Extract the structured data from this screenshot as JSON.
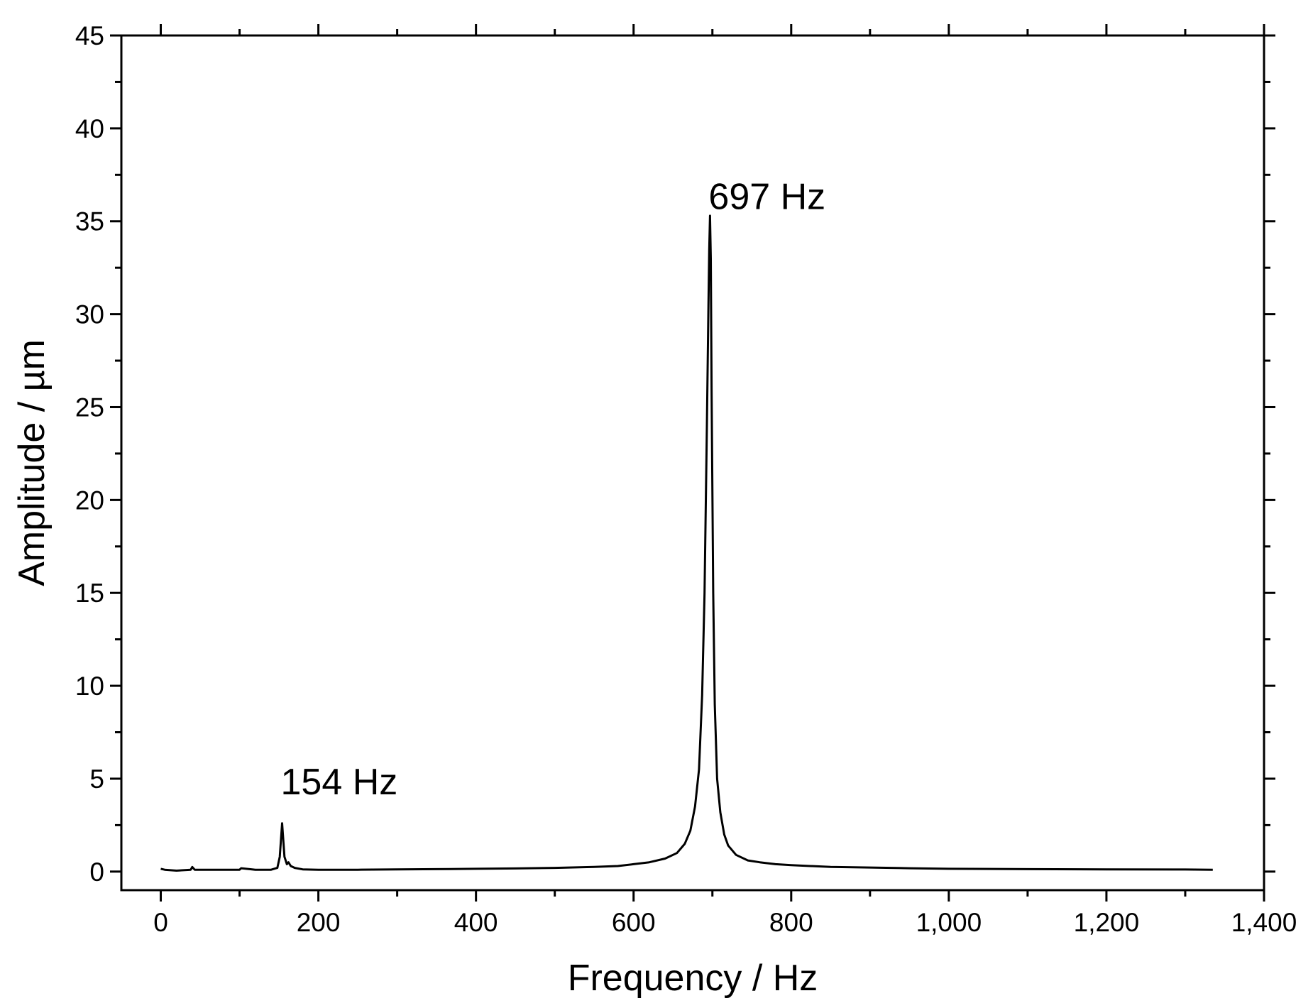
{
  "chart_data": {
    "type": "line",
    "title": "",
    "xlabel": "Frequency / Hz",
    "ylabel": "Amplitude / µm",
    "xlim": [
      -50,
      1400
    ],
    "ylim": [
      -1,
      45
    ],
    "x_ticks": [
      0,
      200,
      400,
      600,
      800,
      1000,
      1200,
      1400
    ],
    "x_tick_labels": [
      "0",
      "200",
      "400",
      "600",
      "800",
      "1,000",
      "1,200",
      "1,400"
    ],
    "y_ticks": [
      0,
      5,
      10,
      15,
      20,
      25,
      30,
      35,
      40,
      45
    ],
    "y_tick_labels": [
      "0",
      "5",
      "10",
      "15",
      "20",
      "25",
      "30",
      "35",
      "40",
      "45"
    ],
    "grid": false,
    "legend": "none",
    "series": [
      {
        "color": "#000000",
        "x": [
          0,
          5,
          20,
          38,
          40,
          43,
          60,
          100,
          102,
          120,
          140,
          148,
          151,
          153,
          154,
          155,
          157,
          160,
          162,
          165,
          170,
          180,
          200,
          250,
          300,
          350,
          400,
          450,
          500,
          550,
          580,
          600,
          620,
          640,
          655,
          665,
          672,
          678,
          683,
          687,
          690,
          693,
          695,
          696,
          697,
          698,
          699,
          701,
          703,
          706,
          710,
          715,
          720,
          730,
          745,
          760,
          780,
          800,
          850,
          900,
          950,
          1000,
          1100,
          1200,
          1300,
          1335
        ],
        "y": [
          0.15,
          0.1,
          0.05,
          0.1,
          0.25,
          0.1,
          0.1,
          0.1,
          0.18,
          0.1,
          0.1,
          0.2,
          0.8,
          2.0,
          2.6,
          2.0,
          0.8,
          0.4,
          0.5,
          0.3,
          0.2,
          0.12,
          0.1,
          0.1,
          0.12,
          0.13,
          0.15,
          0.17,
          0.2,
          0.25,
          0.3,
          0.4,
          0.5,
          0.7,
          1.0,
          1.5,
          2.2,
          3.5,
          5.5,
          9.5,
          15.0,
          24.0,
          30.5,
          33.5,
          35.3,
          33.0,
          26.0,
          15.0,
          9.0,
          5.0,
          3.2,
          2.0,
          1.4,
          0.9,
          0.6,
          0.5,
          0.4,
          0.35,
          0.25,
          0.22,
          0.18,
          0.15,
          0.13,
          0.12,
          0.11,
          0.1
        ]
      }
    ],
    "annotations": [
      {
        "text": "154 Hz",
        "x": 154,
        "y": 5.0
      },
      {
        "text": "697 Hz",
        "x": 697,
        "y": 36.5
      }
    ]
  }
}
